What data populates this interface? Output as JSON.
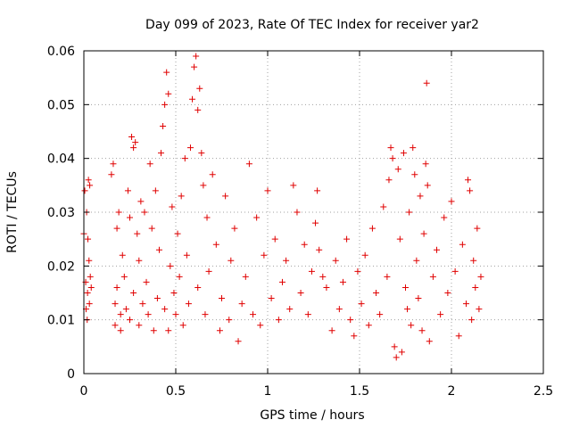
{
  "chart_data": {
    "type": "scatter",
    "title": "Day 099 of 2023, Rate Of TEC Index for receiver yar2",
    "xlabel": "GPS time / hours",
    "ylabel": "ROTI / TECUs",
    "xlim": [
      0,
      2.5
    ],
    "ylim": [
      0,
      0.06
    ],
    "x_ticks": [
      0,
      0.5,
      1,
      1.5,
      2,
      2.5
    ],
    "x_tick_labels": [
      "0",
      "0.5",
      "1",
      "1.5",
      "2",
      "2.5"
    ],
    "y_ticks": [
      0,
      0.01,
      0.02,
      0.03,
      0.04,
      0.05,
      0.06
    ],
    "y_tick_labels": [
      "0",
      "0.01",
      "0.02",
      "0.03",
      "0.04",
      "0.05",
      "0.06"
    ],
    "grid": true,
    "marker": "plus",
    "color": "#e00000",
    "series": [
      {
        "name": "yar2",
        "points": [
          [
            0.0,
            0.026
          ],
          [
            0.005,
            0.034
          ],
          [
            0.01,
            0.017
          ],
          [
            0.012,
            0.012
          ],
          [
            0.015,
            0.03
          ],
          [
            0.018,
            0.01
          ],
          [
            0.02,
            0.015
          ],
          [
            0.022,
            0.025
          ],
          [
            0.025,
            0.036
          ],
          [
            0.028,
            0.021
          ],
          [
            0.03,
            0.013
          ],
          [
            0.032,
            0.035
          ],
          [
            0.035,
            0.018
          ],
          [
            0.04,
            0.016
          ],
          [
            0.15,
            0.037
          ],
          [
            0.16,
            0.039
          ],
          [
            0.17,
            0.013
          ],
          [
            0.17,
            0.009
          ],
          [
            0.18,
            0.027
          ],
          [
            0.18,
            0.016
          ],
          [
            0.19,
            0.03
          ],
          [
            0.2,
            0.011
          ],
          [
            0.2,
            0.008
          ],
          [
            0.21,
            0.022
          ],
          [
            0.22,
            0.018
          ],
          [
            0.23,
            0.012
          ],
          [
            0.24,
            0.034
          ],
          [
            0.25,
            0.029
          ],
          [
            0.25,
            0.01
          ],
          [
            0.26,
            0.044
          ],
          [
            0.27,
            0.042
          ],
          [
            0.27,
            0.015
          ],
          [
            0.28,
            0.043
          ],
          [
            0.29,
            0.026
          ],
          [
            0.3,
            0.009
          ],
          [
            0.3,
            0.021
          ],
          [
            0.31,
            0.032
          ],
          [
            0.32,
            0.013
          ],
          [
            0.33,
            0.03
          ],
          [
            0.34,
            0.017
          ],
          [
            0.35,
            0.011
          ],
          [
            0.36,
            0.039
          ],
          [
            0.37,
            0.027
          ],
          [
            0.38,
            0.008
          ],
          [
            0.39,
            0.034
          ],
          [
            0.4,
            0.014
          ],
          [
            0.41,
            0.023
          ],
          [
            0.42,
            0.041
          ],
          [
            0.43,
            0.046
          ],
          [
            0.44,
            0.05
          ],
          [
            0.44,
            0.012
          ],
          [
            0.45,
            0.056
          ],
          [
            0.46,
            0.052
          ],
          [
            0.46,
            0.008
          ],
          [
            0.47,
            0.02
          ],
          [
            0.48,
            0.031
          ],
          [
            0.49,
            0.015
          ],
          [
            0.5,
            0.011
          ],
          [
            0.51,
            0.026
          ],
          [
            0.52,
            0.018
          ],
          [
            0.53,
            0.033
          ],
          [
            0.54,
            0.009
          ],
          [
            0.55,
            0.04
          ],
          [
            0.56,
            0.022
          ],
          [
            0.57,
            0.013
          ],
          [
            0.58,
            0.042
          ],
          [
            0.59,
            0.051
          ],
          [
            0.6,
            0.057
          ],
          [
            0.61,
            0.059
          ],
          [
            0.62,
            0.049
          ],
          [
            0.62,
            0.016
          ],
          [
            0.63,
            0.053
          ],
          [
            0.64,
            0.041
          ],
          [
            0.65,
            0.035
          ],
          [
            0.66,
            0.011
          ],
          [
            0.67,
            0.029
          ],
          [
            0.68,
            0.019
          ],
          [
            0.7,
            0.037
          ],
          [
            0.72,
            0.024
          ],
          [
            0.74,
            0.008
          ],
          [
            0.75,
            0.014
          ],
          [
            0.77,
            0.033
          ],
          [
            0.79,
            0.01
          ],
          [
            0.8,
            0.021
          ],
          [
            0.82,
            0.027
          ],
          [
            0.84,
            0.006
          ],
          [
            0.86,
            0.013
          ],
          [
            0.88,
            0.018
          ],
          [
            0.9,
            0.039
          ],
          [
            0.92,
            0.011
          ],
          [
            0.94,
            0.029
          ],
          [
            0.96,
            0.009
          ],
          [
            0.98,
            0.022
          ],
          [
            1.0,
            0.034
          ],
          [
            1.02,
            0.014
          ],
          [
            1.04,
            0.025
          ],
          [
            1.06,
            0.01
          ],
          [
            1.08,
            0.017
          ],
          [
            1.1,
            0.021
          ],
          [
            1.12,
            0.012
          ],
          [
            1.14,
            0.035
          ],
          [
            1.16,
            0.03
          ],
          [
            1.18,
            0.015
          ],
          [
            1.2,
            0.024
          ],
          [
            1.22,
            0.011
          ],
          [
            1.24,
            0.019
          ],
          [
            1.26,
            0.028
          ],
          [
            1.27,
            0.034
          ],
          [
            1.28,
            0.023
          ],
          [
            1.3,
            0.018
          ],
          [
            1.32,
            0.016
          ],
          [
            1.35,
            0.008
          ],
          [
            1.37,
            0.021
          ],
          [
            1.39,
            0.012
          ],
          [
            1.41,
            0.017
          ],
          [
            1.43,
            0.025
          ],
          [
            1.45,
            0.01
          ],
          [
            1.47,
            0.007
          ],
          [
            1.49,
            0.019
          ],
          [
            1.51,
            0.013
          ],
          [
            1.53,
            0.022
          ],
          [
            1.55,
            0.009
          ],
          [
            1.57,
            0.027
          ],
          [
            1.59,
            0.015
          ],
          [
            1.61,
            0.011
          ],
          [
            1.63,
            0.031
          ],
          [
            1.65,
            0.018
          ],
          [
            1.66,
            0.036
          ],
          [
            1.67,
            0.042
          ],
          [
            1.68,
            0.04
          ],
          [
            1.69,
            0.005
          ],
          [
            1.7,
            0.003
          ],
          [
            1.71,
            0.038
          ],
          [
            1.72,
            0.025
          ],
          [
            1.73,
            0.004
          ],
          [
            1.74,
            0.041
          ],
          [
            1.75,
            0.016
          ],
          [
            1.76,
            0.012
          ],
          [
            1.77,
            0.03
          ],
          [
            1.78,
            0.009
          ],
          [
            1.79,
            0.042
          ],
          [
            1.8,
            0.037
          ],
          [
            1.81,
            0.021
          ],
          [
            1.82,
            0.014
          ],
          [
            1.83,
            0.033
          ],
          [
            1.84,
            0.008
          ],
          [
            1.85,
            0.026
          ],
          [
            1.86,
            0.039
          ],
          [
            1.865,
            0.054
          ],
          [
            1.87,
            0.035
          ],
          [
            1.88,
            0.006
          ],
          [
            1.9,
            0.018
          ],
          [
            1.92,
            0.023
          ],
          [
            1.94,
            0.011
          ],
          [
            1.96,
            0.029
          ],
          [
            1.98,
            0.015
          ],
          [
            2.0,
            0.032
          ],
          [
            2.02,
            0.019
          ],
          [
            2.04,
            0.007
          ],
          [
            2.06,
            0.024
          ],
          [
            2.08,
            0.013
          ],
          [
            2.09,
            0.036
          ],
          [
            2.1,
            0.034
          ],
          [
            2.11,
            0.01
          ],
          [
            2.12,
            0.021
          ],
          [
            2.13,
            0.016
          ],
          [
            2.14,
            0.027
          ],
          [
            2.15,
            0.012
          ],
          [
            2.16,
            0.018
          ]
        ]
      }
    ]
  }
}
